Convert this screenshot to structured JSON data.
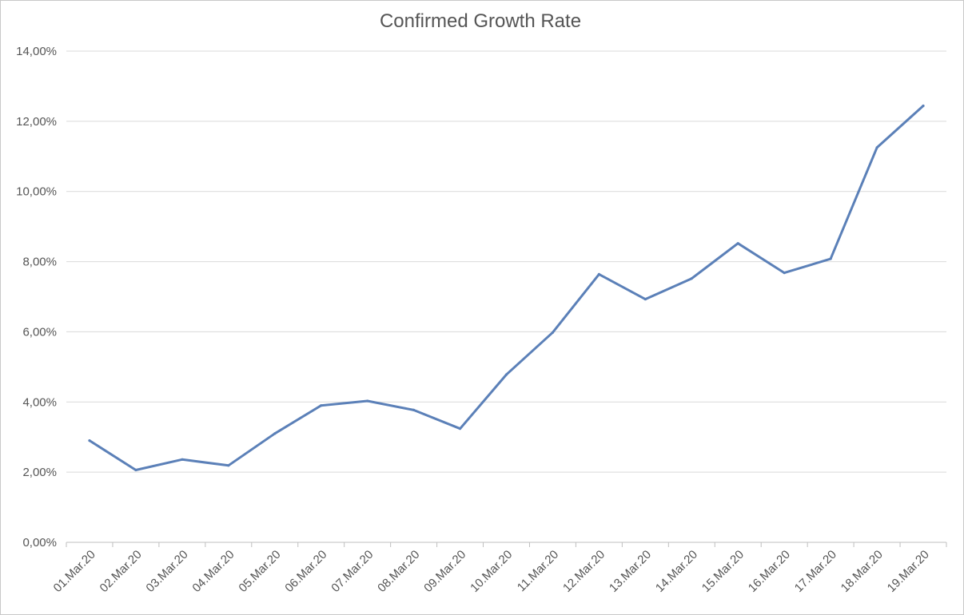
{
  "chart_data": {
    "type": "line",
    "title": "Confirmed Growth Rate",
    "xlabel": "",
    "ylabel": "",
    "categories": [
      "01.Mar.20",
      "02.Mar.20",
      "03.Mar.20",
      "04.Mar.20",
      "05.Mar.20",
      "06.Mar.20",
      "07.Mar.20",
      "08.Mar.20",
      "09.Mar.20",
      "10.Mar.20",
      "11.Mar.20",
      "12.Mar.20",
      "13.Mar.20",
      "14.Mar.20",
      "15.Mar.20",
      "16.Mar.20",
      "17.Mar.20",
      "18.Mar.20",
      "19.Mar.20"
    ],
    "series": [
      {
        "color": "#5b80b8",
        "values": [
          2.9,
          2.06,
          2.36,
          2.19,
          3.1,
          3.9,
          4.03,
          3.77,
          3.24,
          4.78,
          5.98,
          7.64,
          6.93,
          7.52,
          8.52,
          7.68,
          8.08,
          11.25,
          12.44
        ]
      }
    ],
    "ylim": [
      0,
      14
    ],
    "yticks": [
      {
        "value": 0,
        "label": "0,00%"
      },
      {
        "value": 2,
        "label": "2,00%"
      },
      {
        "value": 4,
        "label": "4,00%"
      },
      {
        "value": 6,
        "label": "6,00%"
      },
      {
        "value": 8,
        "label": "8,00%"
      },
      {
        "value": 10,
        "label": "10,00%"
      },
      {
        "value": 12,
        "label": "12,00%"
      },
      {
        "value": 14,
        "label": "14,00%"
      }
    ],
    "grid": true,
    "legend": "none"
  }
}
